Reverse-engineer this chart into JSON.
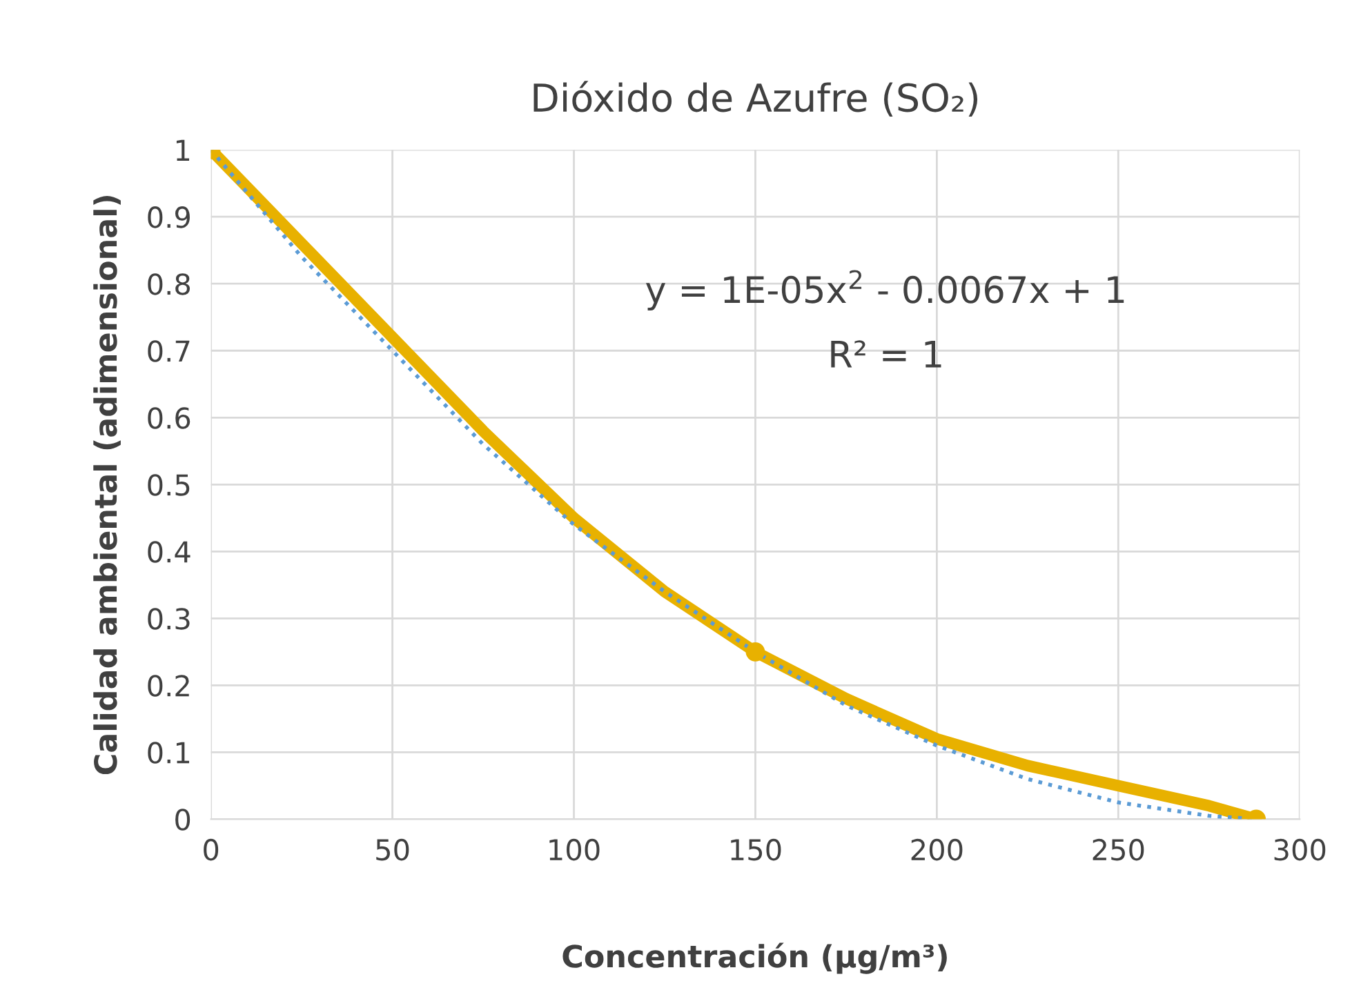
{
  "chart_data": {
    "type": "line",
    "title": "Dióxido de Azufre (SO₂)",
    "xlabel": "Concentración (μg/m³)",
    "ylabel": "Calidad ambiental (adimensional)",
    "series": [
      {
        "color": "#e8b100",
        "x": [
          0,
          25,
          50,
          75,
          100,
          125,
          150,
          175,
          200,
          225,
          250,
          275,
          288
        ],
        "values": [
          1,
          0.86,
          0.72,
          0.58,
          0.45,
          0.34,
          0.25,
          0.18,
          0.12,
          0.08,
          0.05,
          0.02,
          0
        ],
        "line_style": "solid"
      },
      {
        "type": "scatter",
        "color": "#e8b100",
        "x": [
          0,
          150,
          288
        ],
        "values": [
          1,
          0.25,
          0
        ],
        "marker": "circle"
      },
      {
        "color": "#5b9bd5",
        "x": [
          0,
          25,
          50,
          75,
          100,
          125,
          150,
          175,
          200,
          225,
          250,
          275,
          288
        ],
        "values": [
          1,
          0.84,
          0.7,
          0.56,
          0.44,
          0.34,
          0.25,
          0.17,
          0.11,
          0.06,
          0.025,
          0.005,
          0
        ],
        "marker": "none",
        "line_style": "dotted"
      }
    ],
    "annotations": [
      "y = 1E-05x$^{2}$ - 0.0067x + 1",
      "R² = 1"
    ],
    "xlim": [
      0,
      300
    ],
    "xticks": [
      0,
      50,
      100,
      150,
      200,
      250,
      300
    ],
    "ylim": [
      0,
      1
    ],
    "yticks": [
      0,
      0.1,
      0.2,
      0.3,
      0.4,
      0.5,
      0.6,
      0.7,
      0.8,
      0.9,
      1
    ],
    "grid": true,
    "legend": false
  }
}
